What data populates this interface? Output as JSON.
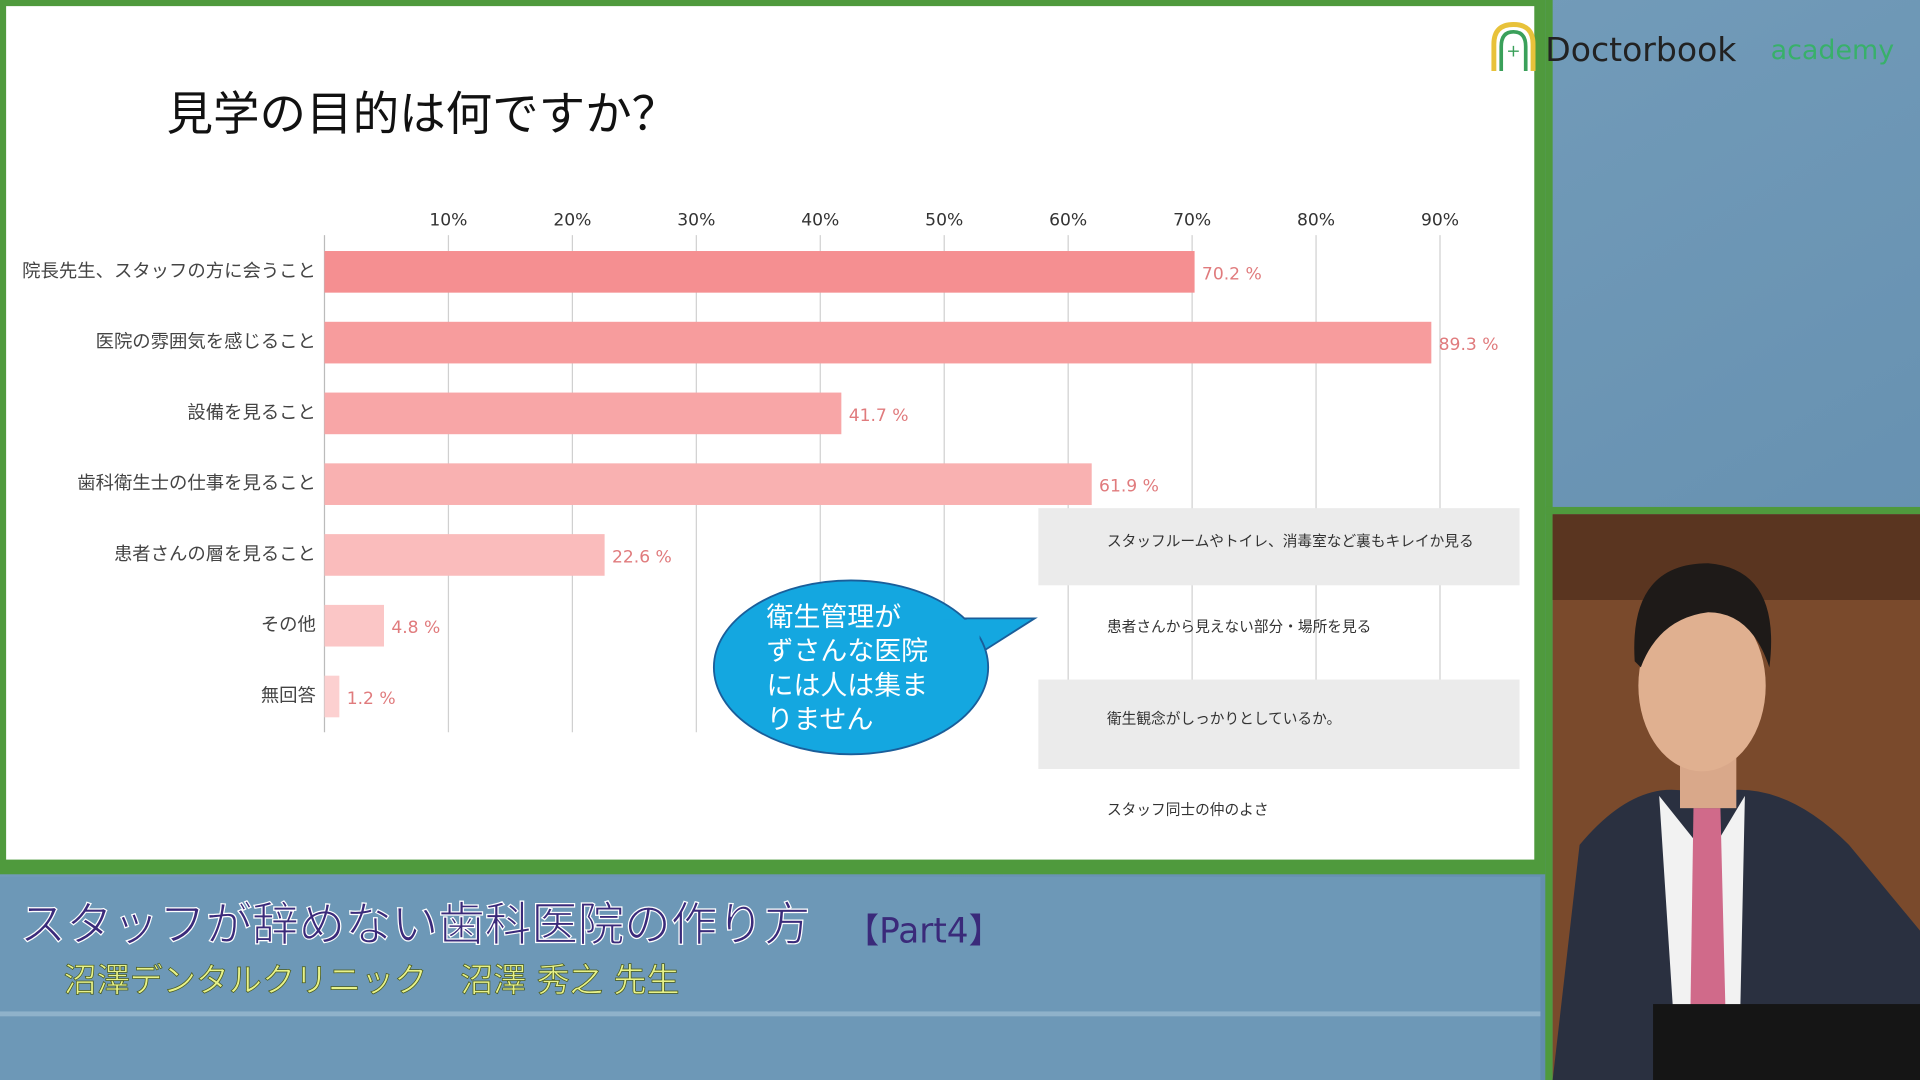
{
  "logo": {
    "brand": "Doctorbook",
    "suffix": "academy"
  },
  "chart_data": {
    "type": "hbar",
    "title": "見学の目的は何ですか？",
    "categories": [
      "院長先生、スタッフの方に会うこと",
      "医院の雰囲気を感じること",
      "設備を見ること",
      "歯科衛生士の仕事を見ること",
      "患者さんの層を見ること",
      "その他",
      "無回答"
    ],
    "values": [
      70.2,
      89.3,
      41.7,
      61.9,
      22.6,
      4.8,
      1.2
    ],
    "value_labels": [
      "70.2 %",
      "89.3 %",
      "41.7 %",
      "61.9 %",
      "22.6 %",
      "4.8 %",
      "1.2 %"
    ],
    "colors": [
      "#f58f91",
      "#f79c9d",
      "#f8a6a7",
      "#f9b1b1",
      "#fabcbc",
      "#fbc6c6",
      "#fcd0d0"
    ],
    "xlim": [
      0,
      90
    ],
    "xticks": [
      {
        "value": 10,
        "label": "10%"
      },
      {
        "value": 20,
        "label": "20%"
      },
      {
        "value": 30,
        "label": "30%"
      },
      {
        "value": 40,
        "label": "40%"
      },
      {
        "value": 50,
        "label": "50%"
      },
      {
        "value": 60,
        "label": "60%"
      },
      {
        "value": 70,
        "label": "70%"
      },
      {
        "value": 80,
        "label": "80%"
      },
      {
        "value": 90,
        "label": "90%"
      }
    ],
    "grid": true
  },
  "callout": [
    "衛生管理が",
    "ずさんな医院",
    "には人は集ま",
    "りません"
  ],
  "notes": [
    "スタッフルームやトイレ、消毒室など裏もキレイか見る",
    "患者さんから見えない部分・場所を見る",
    "衛生観念がしっかりとしているか。",
    "スタッフ同士の仲のよさ"
  ],
  "banner": {
    "title": "スタッフが辞めない歯科医院の作り方",
    "part": "【Part4】",
    "speaker": "沼澤デンタルクリニック　沼澤 秀之 先生"
  }
}
